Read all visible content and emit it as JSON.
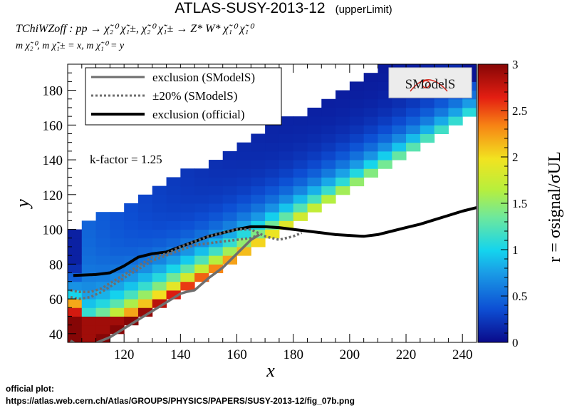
{
  "header": {
    "title": "ATLAS-SUSY-2013-12",
    "title_tag": "(upperLimit)",
    "process": "TChiWZoff : pp → χ̃₂⁰ χ̃₁±, χ̃₂⁰ χ̃₁± → Z* W* χ̃₁⁰ χ̃₁⁰",
    "masses": "m χ̃₂⁰, m χ̃₁± = x, m χ̃₁⁰ = y"
  },
  "footer": {
    "line1": "official plot:",
    "line2": "https://atlas.web.cern.ch/Atlas/GROUPS/PHYSICS/PAPERS/SUSY-2013-12/fig_07b.png"
  },
  "annotation": "k-factor = 1.25",
  "logo_text": "SModelS",
  "chart_data": {
    "type": "heatmap",
    "xlabel": "x",
    "ylabel": "y",
    "xlim": [
      100,
      245
    ],
    "ylim": [
      35,
      195
    ],
    "x_ticks": [
      120,
      140,
      160,
      180,
      200,
      220,
      240
    ],
    "y_ticks": [
      40,
      60,
      80,
      100,
      120,
      140,
      160,
      180
    ],
    "colorbar": {
      "label": "r = σsignal/σUL",
      "min": 0,
      "max": 3,
      "ticks": [
        0,
        0.5,
        1,
        1.5,
        2,
        2.5,
        3
      ],
      "tick_labels": [
        "0",
        "0.5",
        "1",
        "1.5",
        "2",
        "2.5",
        "3"
      ]
    },
    "legend": {
      "placement": "top-left",
      "entries": [
        {
          "label": "exclusion (SModelS)",
          "style": "solid-gray"
        },
        {
          "label": "±20% (SModelS)",
          "style": "dotted-gray"
        },
        {
          "label": "exclusion (official)",
          "style": "solid-black"
        }
      ]
    },
    "heatmap_description": {
      "cell_size_x": 5,
      "cell_size_y": 5,
      "lower_edge_diagonal": "y ≈ x − 75",
      "upper_edge_diagonal": "y ≈ 0.85·x + 12",
      "r_trend": "high (r≈3) near lower-left (x≈105–115, y≈35–50), decreasing to ≈0.1–0.5 toward the upper right"
    },
    "series": [
      {
        "name": "exclusion (official)",
        "color": "#000000",
        "x": [
          102,
          110,
          115,
          120,
          125,
          130,
          135,
          140,
          145,
          150,
          155,
          160,
          165,
          170,
          175,
          180,
          185,
          190,
          195,
          200,
          205,
          210,
          215,
          220,
          225,
          230,
          235,
          240,
          245
        ],
        "y": [
          73.5,
          74,
          75,
          79,
          84,
          86,
          87,
          90,
          93,
          96,
          98,
          100,
          101.5,
          101.5,
          101,
          100,
          99,
          98,
          97,
          96.5,
          96,
          97,
          99,
          101,
          103,
          105.5,
          108,
          110.5,
          112.5
        ]
      },
      {
        "name": "exclusion (SModelS)",
        "color": "#6e6e6e",
        "x": [
          101,
          103,
          106,
          109,
          112,
          115,
          120,
          125,
          130,
          135,
          140,
          142,
          145,
          150,
          155,
          160,
          165,
          168
        ],
        "y": [
          36,
          34,
          33,
          34,
          36,
          38,
          43,
          48,
          53,
          58,
          63,
          64,
          65,
          72,
          78,
          86,
          94,
          97
        ]
      },
      {
        "name": "±20% (SModelS) upper",
        "color": "#6e6e6e",
        "x": [
          101,
          104,
          108,
          112,
          116,
          120,
          125,
          130,
          135,
          140,
          145,
          150,
          155,
          160,
          165,
          170,
          175,
          180,
          183
        ],
        "y": [
          65,
          64,
          64,
          66,
          70,
          74,
          79,
          84,
          86,
          90,
          93,
          96,
          98,
          100,
          100,
          96,
          94,
          96,
          98
        ]
      },
      {
        "name": "±20% (SModelS) lower",
        "color": "#6e6e6e",
        "x": [
          101,
          104,
          108,
          112,
          116,
          120,
          125,
          130,
          135,
          140,
          145,
          150,
          155,
          160,
          165,
          168
        ],
        "y": [
          61,
          60,
          61,
          64,
          68,
          72,
          77,
          82,
          85,
          88,
          91,
          92,
          93,
          94,
          95,
          97
        ]
      }
    ]
  }
}
